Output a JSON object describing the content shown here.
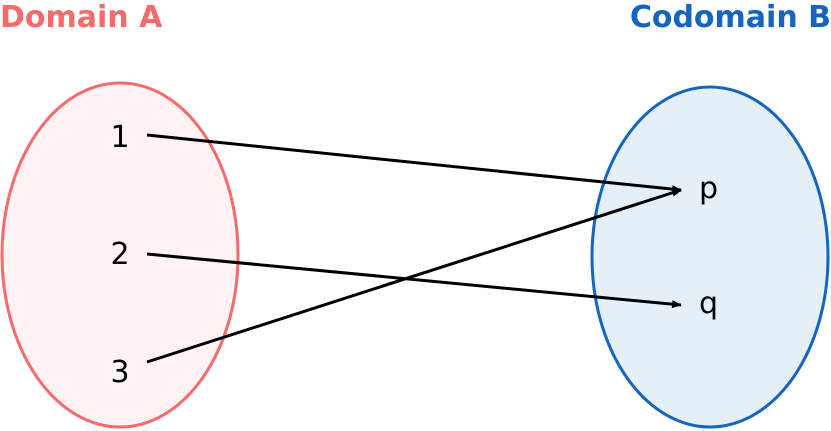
{
  "domain": {
    "title": "Domain A",
    "elements": [
      "1",
      "2",
      "3"
    ],
    "fill": "#fef2f2",
    "stroke": "#f56b6b"
  },
  "codomain": {
    "title": "Codomain B",
    "elements": [
      "p",
      "q"
    ],
    "fill": "#e4eff8",
    "stroke": "#1565c0"
  },
  "mapping": [
    {
      "from": "1",
      "to": "p"
    },
    {
      "from": "2",
      "to": "q"
    },
    {
      "from": "3",
      "to": "p"
    }
  ],
  "arrow_color": "#000000"
}
